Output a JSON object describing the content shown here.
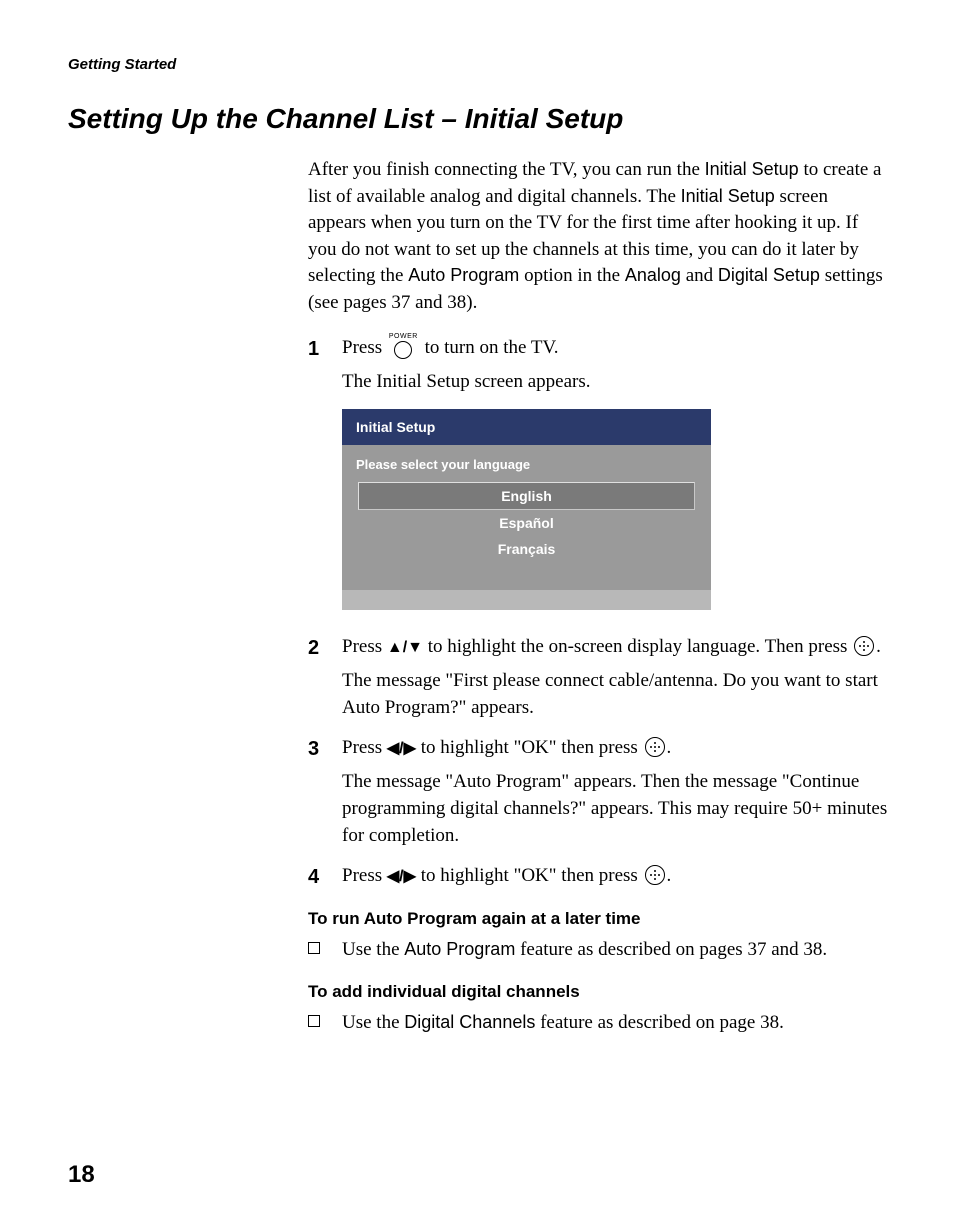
{
  "header": {
    "section_label": "Getting Started"
  },
  "title": "Setting Up the Channel List – Initial Setup",
  "intro": {
    "t1": "After you finish connecting the TV, you can run the ",
    "s1": "Initial Setup",
    "t2": " to create a list of available analog and digital channels. The ",
    "s2": "Initial Setup",
    "t3": " screen appears when you turn on the TV for the first time after hooking it up. If you do not want to set up the channels at this time, you can do it later by selecting the ",
    "s3": "Auto Program",
    "t4": " option in the ",
    "s4": "Analog",
    "t5": " and ",
    "s5": "Digital Setup",
    "t6": " settings (see pages 37 and 38)."
  },
  "steps": {
    "n1": "1",
    "s1a": "Press ",
    "s1_power_label": "POWER",
    "s1b": " to turn on the TV.",
    "s1_sub": "The Initial Setup screen appears.",
    "n2": "2",
    "s2a": "Press ",
    "s2_arrows": "V/v",
    "s2b": " to highlight the on-screen display language. Then press ",
    "s2c": ".",
    "s2_sub": "The message \"First please connect cable/antenna. Do you want to start Auto Program?\" appears.",
    "n3": "3",
    "s3a": "Press ",
    "s3_arrows": "B/b",
    "s3b": " to highlight \"OK\" then press ",
    "s3c": ".",
    "s3_sub": "The message \"Auto Program\" appears. Then the message \"Continue programming digital channels?\" appears. This may require 50+ minutes for completion.",
    "n4": "4",
    "s4a": "Press ",
    "s4_arrows": "B/b",
    "s4b": " to highlight \"OK\" then press ",
    "s4c": "."
  },
  "dialog": {
    "title": "Initial Setup",
    "prompt": "Please select your language",
    "opt1": "English",
    "opt2": "Español",
    "opt3": "Français",
    "colors": {
      "header_bg": "#2b3a6b",
      "body_bg": "#9a9a9a",
      "selected_bg": "#7a7a7a",
      "footer_bg": "#b8b8b8",
      "text": "#ffffff"
    }
  },
  "sub1": {
    "heading": "To run Auto Program again at a later time",
    "t1": "Use the ",
    "s1": "Auto Program",
    "t2": " feature as described on pages 37 and 38."
  },
  "sub2": {
    "heading": "To add individual digital channels",
    "t1": "Use the ",
    "s1": "Digital Channels",
    "t2": " feature as described on page 38."
  },
  "page_number": "18"
}
